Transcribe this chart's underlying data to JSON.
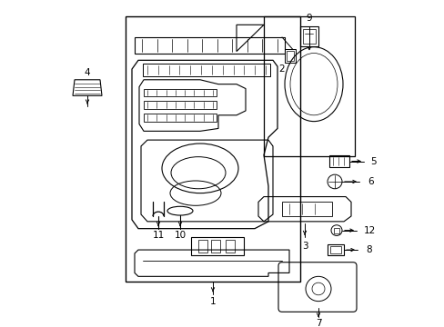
{
  "bg_color": "#ffffff",
  "line_color": "#000000",
  "figsize": [
    4.89,
    3.6
  ],
  "dpi": 100,
  "label_fontsize": 7.5
}
